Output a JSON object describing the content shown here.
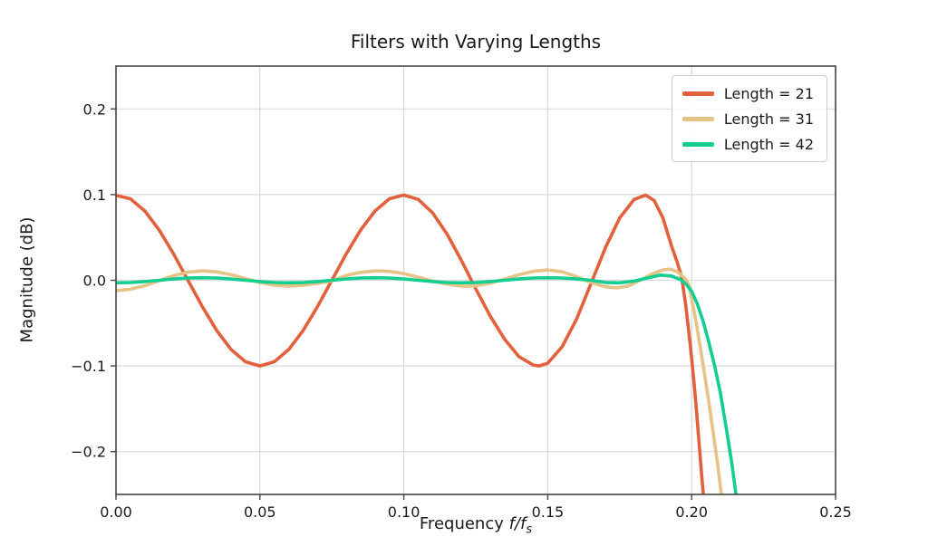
{
  "chart": {
    "title": "Filters with Varying Lengths",
    "ylabel": "Magnitude (dB)",
    "xlabel_prefix": "Frequency ",
    "xlabel_math": "f/f",
    "xlabel_sub": "s"
  },
  "colors": {
    "background": "#ffffff",
    "grid": "#d9d9d9",
    "spine": "#454545",
    "tick": "#454545",
    "text": "#1a1a1a",
    "legend_border": "#cccccc"
  },
  "chart_data": {
    "type": "line",
    "title": "Filters with Varying Lengths",
    "xlabel": "Frequency f/f_s",
    "ylabel": "Magnitude (dB)",
    "xlim": [
      0,
      0.25
    ],
    "ylim": [
      -0.25,
      0.25
    ],
    "grid": true,
    "legend_position": "upper right",
    "xticks": [
      {
        "value": 0.0,
        "label": "0.00"
      },
      {
        "value": 0.05,
        "label": "0.05"
      },
      {
        "value": 0.1,
        "label": "0.10"
      },
      {
        "value": 0.15,
        "label": "0.15"
      },
      {
        "value": 0.2,
        "label": "0.20"
      },
      {
        "value": 0.25,
        "label": "0.25"
      }
    ],
    "yticks": [
      {
        "value": -0.2,
        "label": "−0.2"
      },
      {
        "value": -0.1,
        "label": "−0.1"
      },
      {
        "value": 0.0,
        "label": "0.0"
      },
      {
        "value": 0.1,
        "label": "0.1"
      },
      {
        "value": 0.2,
        "label": "0.2"
      }
    ],
    "series": [
      {
        "name": "Length = 21",
        "color": "#E2603C",
        "ripple_db": 0.1,
        "points": [
          [
            0,
            0.099
          ],
          [
            0.005,
            0.0951
          ],
          [
            0.01,
            0.0809
          ],
          [
            0.015,
            0.0588
          ],
          [
            0.02,
            0.0309
          ],
          [
            0.025,
            0
          ],
          [
            0.03,
            -0.0309
          ],
          [
            0.035,
            -0.0588
          ],
          [
            0.04,
            -0.0809
          ],
          [
            0.045,
            -0.0951
          ],
          [
            0.05,
            -0.1
          ],
          [
            0.055,
            -0.0951
          ],
          [
            0.06,
            -0.0809
          ],
          [
            0.065,
            -0.0588
          ],
          [
            0.07,
            -0.0309
          ],
          [
            0.075,
            0
          ],
          [
            0.08,
            0.0309
          ],
          [
            0.085,
            0.0588
          ],
          [
            0.09,
            0.0809
          ],
          [
            0.095,
            0.0951
          ],
          [
            0.1,
            0.0995
          ],
          [
            0.105,
            0.0944
          ],
          [
            0.11,
            0.0786
          ],
          [
            0.115,
            0.054
          ],
          [
            0.12,
            0.0233
          ],
          [
            0.125,
            -0.01
          ],
          [
            0.13,
            -0.0418
          ],
          [
            0.135,
            -0.0688
          ],
          [
            0.14,
            -0.0891
          ],
          [
            0.145,
            -0.0991
          ],
          [
            0.147,
            -0.1
          ],
          [
            0.15,
            -0.0968
          ],
          [
            0.155,
            -0.0776
          ],
          [
            0.16,
            -0.0454
          ],
          [
            0.165,
            -0.0042
          ],
          [
            0.17,
            0.0376
          ],
          [
            0.175,
            0.0728
          ],
          [
            0.18,
            0.0943
          ],
          [
            0.184,
            0.0995
          ],
          [
            0.187,
            0.093
          ],
          [
            0.19,
            0.073
          ],
          [
            0.193,
            0.04
          ],
          [
            0.195,
            0.021
          ],
          [
            0.1965,
            0.004
          ],
          [
            0.198,
            -0.03
          ],
          [
            0.1995,
            -0.075
          ],
          [
            0.2005,
            -0.108
          ],
          [
            0.2015,
            -0.145
          ],
          [
            0.2025,
            -0.186
          ],
          [
            0.2035,
            -0.228
          ],
          [
            0.2043,
            -0.26
          ]
        ]
      },
      {
        "name": "Length = 31",
        "color": "#E6C386",
        "ripple_db": 0.012,
        "points": [
          [
            0,
            -0.012
          ],
          [
            0.005,
            -0.0105
          ],
          [
            0.01,
            -0.0063
          ],
          [
            0.015,
            -0.0005
          ],
          [
            0.02,
            0.0053
          ],
          [
            0.025,
            0.0095
          ],
          [
            0.03,
            0.011
          ],
          [
            0.035,
            0.0098
          ],
          [
            0.04,
            0.0065
          ],
          [
            0.045,
            0.002
          ],
          [
            0.05,
            -0.0025
          ],
          [
            0.055,
            -0.0058
          ],
          [
            0.06,
            -0.007
          ],
          [
            0.065,
            -0.0059
          ],
          [
            0.07,
            -0.0037
          ],
          [
            0.075,
            -0.0007
          ],
          [
            0.08,
            0.0057
          ],
          [
            0.085,
            0.0092
          ],
          [
            0.09,
            0.0109
          ],
          [
            0.0915,
            0.011
          ],
          [
            0.095,
            0.0104
          ],
          [
            0.1,
            0.0078
          ],
          [
            0.105,
            0.0036
          ],
          [
            0.11,
            -0.001
          ],
          [
            0.115,
            -0.0047
          ],
          [
            0.12,
            -0.0068
          ],
          [
            0.122,
            -0.007
          ],
          [
            0.125,
            -0.0065
          ],
          [
            0.13,
            -0.0034
          ],
          [
            0.135,
            0.0014
          ],
          [
            0.14,
            0.0065
          ],
          [
            0.145,
            0.0105
          ],
          [
            0.15,
            0.012
          ],
          [
            0.155,
            0.0098
          ],
          [
            0.16,
            0.0042
          ],
          [
            0.165,
            -0.0025
          ],
          [
            0.17,
            -0.0076
          ],
          [
            0.174,
            -0.009
          ],
          [
            0.178,
            -0.0066
          ],
          [
            0.182,
            -0.0003
          ],
          [
            0.186,
            0.007
          ],
          [
            0.19,
            0.012
          ],
          [
            0.1925,
            0.013
          ],
          [
            0.195,
            0.01
          ],
          [
            0.1975,
            0.003
          ],
          [
            0.199,
            -0.005
          ],
          [
            0.2,
            -0.022
          ],
          [
            0.2015,
            -0.048
          ],
          [
            0.203,
            -0.078
          ],
          [
            0.2045,
            -0.11
          ],
          [
            0.206,
            -0.143
          ],
          [
            0.2075,
            -0.178
          ],
          [
            0.209,
            -0.214
          ],
          [
            0.2105,
            -0.255
          ]
        ]
      },
      {
        "name": "Length = 42",
        "color": "#12CE90",
        "ripple_db": 0.003,
        "points": [
          [
            0,
            -0.003
          ],
          [
            0.005,
            -0.0026
          ],
          [
            0.01,
            -0.0015
          ],
          [
            0.015,
            0
          ],
          [
            0.02,
            0.0015
          ],
          [
            0.025,
            0.0026
          ],
          [
            0.03,
            0.003
          ],
          [
            0.035,
            0.0026
          ],
          [
            0.04,
            0.0015
          ],
          [
            0.045,
            0
          ],
          [
            0.05,
            -0.0015
          ],
          [
            0.055,
            -0.0026
          ],
          [
            0.06,
            -0.003
          ],
          [
            0.065,
            -0.0026
          ],
          [
            0.07,
            -0.0015
          ],
          [
            0.075,
            0
          ],
          [
            0.08,
            0.0015
          ],
          [
            0.085,
            0.0026
          ],
          [
            0.09,
            0.003
          ],
          [
            0.095,
            0.0026
          ],
          [
            0.1,
            0.0015
          ],
          [
            0.105,
            0
          ],
          [
            0.11,
            -0.0015
          ],
          [
            0.115,
            -0.0026
          ],
          [
            0.12,
            -0.003
          ],
          [
            0.125,
            -0.0026
          ],
          [
            0.13,
            -0.0015
          ],
          [
            0.135,
            0
          ],
          [
            0.14,
            0.0015
          ],
          [
            0.145,
            0.0026
          ],
          [
            0.15,
            0.003
          ],
          [
            0.155,
            0.0026
          ],
          [
            0.16,
            0.0015
          ],
          [
            0.165,
            0
          ],
          [
            0.17,
            -0.0025
          ],
          [
            0.175,
            -0.003
          ],
          [
            0.18,
            -0.001
          ],
          [
            0.185,
            0.003
          ],
          [
            0.189,
            0.006
          ],
          [
            0.193,
            0.005
          ],
          [
            0.196,
            0.001
          ],
          [
            0.198,
            -0.004
          ],
          [
            0.2,
            -0.013
          ],
          [
            0.202,
            -0.028
          ],
          [
            0.204,
            -0.048
          ],
          [
            0.206,
            -0.073
          ],
          [
            0.208,
            -0.1
          ],
          [
            0.21,
            -0.132
          ],
          [
            0.212,
            -0.172
          ],
          [
            0.214,
            -0.215
          ],
          [
            0.2158,
            -0.26
          ]
        ]
      }
    ]
  }
}
